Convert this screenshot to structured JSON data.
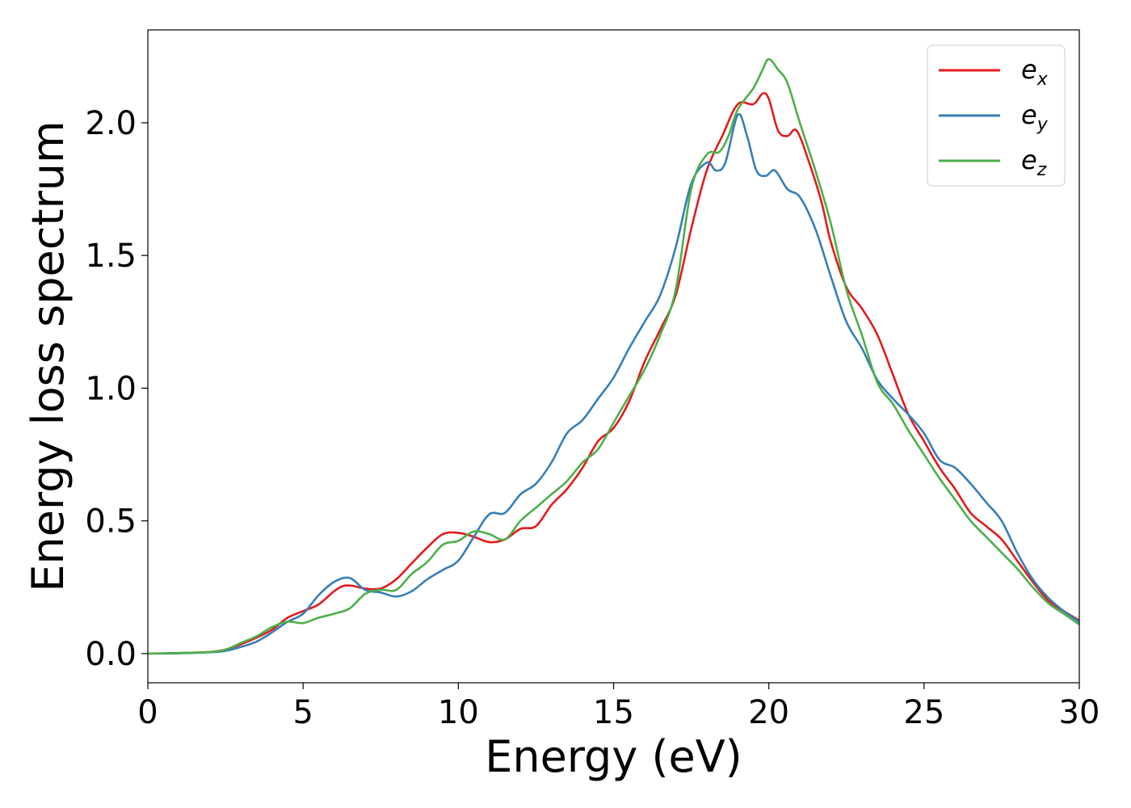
{
  "chart_data": {
    "type": "line",
    "title": "",
    "xlabel": "Energy (eV)",
    "ylabel": "Energy loss spectrum",
    "xlim": [
      0,
      30
    ],
    "ylim": [
      -0.11,
      2.35
    ],
    "xticks": [
      0,
      5,
      10,
      15,
      20,
      25,
      30
    ],
    "xtick_labels": [
      "0",
      "5",
      "10",
      "15",
      "20",
      "25",
      "30"
    ],
    "yticks": [
      0.0,
      0.5,
      1.0,
      1.5,
      2.0
    ],
    "ytick_labels": [
      "0.0",
      "0.5",
      "1.0",
      "1.5",
      "2.0"
    ],
    "grid": false,
    "legend_position": "top-right",
    "series": [
      {
        "name": "e_x",
        "label_base": "e",
        "label_sub": "x",
        "color": "#e41a1c",
        "points": [
          [
            0,
            0
          ],
          [
            1,
            0.002
          ],
          [
            2,
            0.006
          ],
          [
            2.5,
            0.015
          ],
          [
            3,
            0.035
          ],
          [
            3.5,
            0.06
          ],
          [
            4,
            0.09
          ],
          [
            4.5,
            0.135
          ],
          [
            5,
            0.16
          ],
          [
            5.5,
            0.185
          ],
          [
            6,
            0.235
          ],
          [
            6.3,
            0.255
          ],
          [
            6.6,
            0.255
          ],
          [
            7,
            0.245
          ],
          [
            7.5,
            0.245
          ],
          [
            8,
            0.28
          ],
          [
            8.5,
            0.34
          ],
          [
            9,
            0.4
          ],
          [
            9.5,
            0.45
          ],
          [
            10,
            0.455
          ],
          [
            10.5,
            0.44
          ],
          [
            11,
            0.42
          ],
          [
            11.5,
            0.43
          ],
          [
            12,
            0.47
          ],
          [
            12.5,
            0.48
          ],
          [
            13,
            0.56
          ],
          [
            13.5,
            0.62
          ],
          [
            14,
            0.7
          ],
          [
            14.5,
            0.8
          ],
          [
            15,
            0.85
          ],
          [
            15.5,
            0.95
          ],
          [
            16,
            1.1
          ],
          [
            16.5,
            1.22
          ],
          [
            17,
            1.35
          ],
          [
            17.5,
            1.6
          ],
          [
            18,
            1.82
          ],
          [
            18.5,
            1.95
          ],
          [
            19,
            2.07
          ],
          [
            19.5,
            2.07
          ],
          [
            19.8,
            2.11
          ],
          [
            20,
            2.09
          ],
          [
            20.3,
            1.97
          ],
          [
            20.6,
            1.95
          ],
          [
            20.9,
            1.97
          ],
          [
            21.3,
            1.85
          ],
          [
            21.7,
            1.7
          ],
          [
            22,
            1.55
          ],
          [
            22.5,
            1.38
          ],
          [
            23,
            1.3
          ],
          [
            23.5,
            1.2
          ],
          [
            24,
            1.05
          ],
          [
            24.5,
            0.9
          ],
          [
            25,
            0.8
          ],
          [
            25.5,
            0.7
          ],
          [
            26,
            0.62
          ],
          [
            26.5,
            0.53
          ],
          [
            27,
            0.48
          ],
          [
            27.5,
            0.43
          ],
          [
            28,
            0.35
          ],
          [
            28.5,
            0.27
          ],
          [
            29,
            0.2
          ],
          [
            29.5,
            0.16
          ],
          [
            30,
            0.125
          ]
        ]
      },
      {
        "name": "e_y",
        "label_base": "e",
        "label_sub": "y",
        "color": "#377eb8",
        "points": [
          [
            0,
            0
          ],
          [
            1,
            0.001
          ],
          [
            2,
            0.005
          ],
          [
            2.5,
            0.01
          ],
          [
            3,
            0.025
          ],
          [
            3.5,
            0.045
          ],
          [
            4,
            0.08
          ],
          [
            4.5,
            0.12
          ],
          [
            5,
            0.15
          ],
          [
            5.5,
            0.22
          ],
          [
            6,
            0.27
          ],
          [
            6.5,
            0.285
          ],
          [
            7,
            0.24
          ],
          [
            7.5,
            0.23
          ],
          [
            8,
            0.215
          ],
          [
            8.5,
            0.235
          ],
          [
            9,
            0.28
          ],
          [
            9.5,
            0.315
          ],
          [
            10,
            0.35
          ],
          [
            10.5,
            0.44
          ],
          [
            11,
            0.525
          ],
          [
            11.5,
            0.53
          ],
          [
            12,
            0.6
          ],
          [
            12.5,
            0.64
          ],
          [
            13,
            0.72
          ],
          [
            13.5,
            0.83
          ],
          [
            14,
            0.88
          ],
          [
            14.5,
            0.96
          ],
          [
            15,
            1.04
          ],
          [
            15.5,
            1.15
          ],
          [
            16,
            1.25
          ],
          [
            16.5,
            1.35
          ],
          [
            17,
            1.53
          ],
          [
            17.5,
            1.77
          ],
          [
            18,
            1.85
          ],
          [
            18.3,
            1.82
          ],
          [
            18.6,
            1.85
          ],
          [
            19,
            2.03
          ],
          [
            19.3,
            1.95
          ],
          [
            19.6,
            1.82
          ],
          [
            19.9,
            1.8
          ],
          [
            20.2,
            1.82
          ],
          [
            20.6,
            1.75
          ],
          [
            21,
            1.72
          ],
          [
            21.5,
            1.6
          ],
          [
            22,
            1.42
          ],
          [
            22.5,
            1.25
          ],
          [
            23,
            1.15
          ],
          [
            23.5,
            1.03
          ],
          [
            24,
            0.96
          ],
          [
            24.5,
            0.9
          ],
          [
            25,
            0.83
          ],
          [
            25.5,
            0.73
          ],
          [
            26,
            0.7
          ],
          [
            26.5,
            0.64
          ],
          [
            27,
            0.57
          ],
          [
            27.5,
            0.5
          ],
          [
            28,
            0.38
          ],
          [
            28.5,
            0.28
          ],
          [
            29,
            0.21
          ],
          [
            29.5,
            0.16
          ],
          [
            30,
            0.12
          ]
        ]
      },
      {
        "name": "e_z",
        "label_base": "e",
        "label_sub": "z",
        "color": "#4daf4a",
        "points": [
          [
            0,
            0
          ],
          [
            1,
            0.002
          ],
          [
            2,
            0.006
          ],
          [
            2.5,
            0.015
          ],
          [
            3,
            0.04
          ],
          [
            3.5,
            0.065
          ],
          [
            4,
            0.1
          ],
          [
            4.5,
            0.12
          ],
          [
            5,
            0.115
          ],
          [
            5.5,
            0.135
          ],
          [
            6,
            0.15
          ],
          [
            6.5,
            0.17
          ],
          [
            7,
            0.225
          ],
          [
            7.5,
            0.24
          ],
          [
            8,
            0.24
          ],
          [
            8.5,
            0.3
          ],
          [
            9,
            0.345
          ],
          [
            9.5,
            0.41
          ],
          [
            10,
            0.425
          ],
          [
            10.5,
            0.46
          ],
          [
            11,
            0.45
          ],
          [
            11.5,
            0.43
          ],
          [
            12,
            0.5
          ],
          [
            12.5,
            0.55
          ],
          [
            13,
            0.6
          ],
          [
            13.5,
            0.65
          ],
          [
            14,
            0.72
          ],
          [
            14.5,
            0.77
          ],
          [
            15,
            0.87
          ],
          [
            15.5,
            0.97
          ],
          [
            16,
            1.07
          ],
          [
            16.5,
            1.2
          ],
          [
            17,
            1.37
          ],
          [
            17.5,
            1.75
          ],
          [
            18,
            1.88
          ],
          [
            18.4,
            1.89
          ],
          [
            18.7,
            1.95
          ],
          [
            19,
            2.05
          ],
          [
            19.5,
            2.13
          ],
          [
            19.8,
            2.2
          ],
          [
            20,
            2.24
          ],
          [
            20.3,
            2.2
          ],
          [
            20.6,
            2.15
          ],
          [
            21,
            2.0
          ],
          [
            21.5,
            1.82
          ],
          [
            22,
            1.62
          ],
          [
            22.5,
            1.37
          ],
          [
            23,
            1.2
          ],
          [
            23.5,
            1.02
          ],
          [
            24,
            0.94
          ],
          [
            24.5,
            0.84
          ],
          [
            25,
            0.75
          ],
          [
            25.5,
            0.66
          ],
          [
            26,
            0.58
          ],
          [
            26.5,
            0.5
          ],
          [
            27,
            0.44
          ],
          [
            27.5,
            0.38
          ],
          [
            28,
            0.32
          ],
          [
            28.5,
            0.25
          ],
          [
            29,
            0.19
          ],
          [
            29.5,
            0.15
          ],
          [
            30,
            0.11
          ]
        ]
      }
    ]
  }
}
